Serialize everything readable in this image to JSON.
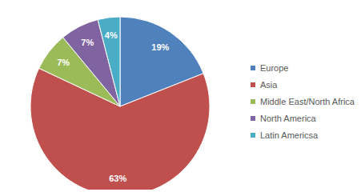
{
  "chart_data": {
    "type": "pie",
    "categories": [
      "Europe",
      "Asia",
      "Middle East/North Africa",
      "North America",
      "Latin Americsa"
    ],
    "values": [
      19,
      63,
      7,
      7,
      4
    ],
    "value_labels": [
      "19%",
      "63%",
      "7%",
      "7%",
      "4%"
    ],
    "colors": [
      "#4f81bd",
      "#c0504d",
      "#9bbb59",
      "#8064a2",
      "#4bacc6"
    ],
    "data_labels": true,
    "legend": "right"
  }
}
